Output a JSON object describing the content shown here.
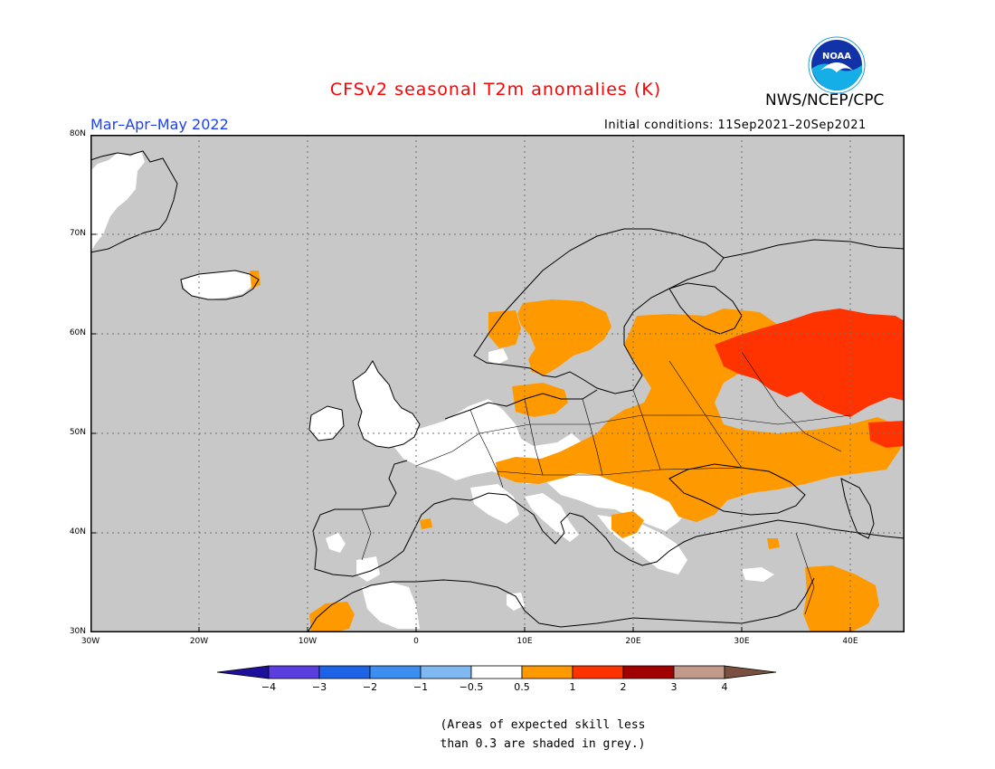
{
  "header": {
    "title": "CFSv2 seasonal T2m anomalies (K)",
    "agency": "NWS/NCEP/CPC",
    "season": "Mar–Apr–May 2022",
    "initial_conditions": "Initial conditions: 11Sep2021–20Sep2021",
    "logo_text": "NOAA"
  },
  "map": {
    "region": "Europe",
    "projection": "lat-lon",
    "lon_range": [
      -30,
      45
    ],
    "lat_range": [
      30,
      80
    ],
    "lat_labels": [
      "80N",
      "70N",
      "60N",
      "50N",
      "40N",
      "30N"
    ],
    "lon_labels": [
      "30W",
      "20W",
      "10W",
      "0",
      "10E",
      "20E",
      "30E",
      "40E"
    ],
    "background_color": "#c8c8c8",
    "gridlines": "dotted"
  },
  "colorbar": {
    "labels": [
      "−4",
      "−3",
      "−2",
      "−1",
      "−0.5",
      "0.5",
      "1",
      "2",
      "3",
      "4"
    ],
    "colors": [
      "#1e0f9c",
      "#5a3ee0",
      "#1d63e6",
      "#3c8ff0",
      "#80b8f2",
      "#ffffff",
      "#ff9900",
      "#ff3300",
      "#a00000",
      "#c09a8a",
      "#7a5040"
    ]
  },
  "note": {
    "line1": "(Areas of expected skill less",
    "line2": "than 0.3 are shaded in grey.)"
  }
}
